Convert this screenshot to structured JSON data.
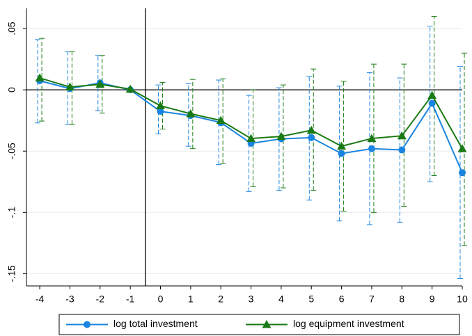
{
  "chart_data": {
    "type": "line",
    "x": [
      -4,
      -3,
      -2,
      -1,
      0,
      1,
      2,
      3,
      4,
      5,
      6,
      7,
      8,
      9,
      10
    ],
    "xlim": [
      -4.44,
      10
    ],
    "xticks": [
      -4,
      -3,
      -2,
      -1,
      0,
      1,
      2,
      3,
      4,
      5,
      6,
      7,
      8,
      9,
      10
    ],
    "ylim": [
      -0.16,
      0.0665
    ],
    "yticks": [
      {
        "value": -0.15,
        "label": "-.15"
      },
      {
        "value": -0.1,
        "label": "-.1"
      },
      {
        "value": -0.05,
        "label": "-.05"
      },
      0,
      {
        "value": 0.05,
        "label": ".05"
      }
    ],
    "grid": true,
    "hline": 0,
    "vline": -0.5,
    "legend": "bottom",
    "series": [
      {
        "name": "log total investment",
        "color": "#1a85e0",
        "marker": "circle",
        "values": [
          0.0074,
          0.001,
          0.0057,
          0,
          -0.0176,
          -0.021,
          -0.0267,
          -0.0437,
          -0.04,
          -0.039,
          -0.052,
          -0.048,
          -0.049,
          -0.011,
          -0.0676
        ],
        "lower": [
          -0.027,
          -0.028,
          -0.017,
          null,
          -0.036,
          -0.046,
          -0.061,
          -0.083,
          -0.082,
          -0.09,
          -0.107,
          -0.11,
          -0.108,
          -0.075,
          -0.154
        ],
        "upper": [
          0.041,
          0.031,
          0.028,
          null,
          0.004,
          0.005,
          0.008,
          -0.0045,
          0.0017,
          0.011,
          0.003,
          0.014,
          0.0097,
          0.052,
          0.019
        ]
      },
      {
        "name": "log equipment investment",
        "color": "#1a7a14",
        "marker": "triangle",
        "values": [
          0.0097,
          0.0023,
          0.0045,
          0.0006,
          -0.013,
          -0.0195,
          -0.025,
          -0.0397,
          -0.038,
          -0.033,
          -0.046,
          -0.0397,
          -0.0375,
          -0.0045,
          -0.048
        ],
        "lower": [
          -0.0255,
          -0.028,
          -0.019,
          null,
          -0.032,
          -0.048,
          -0.06,
          -0.079,
          -0.08,
          -0.082,
          -0.099,
          -0.1,
          -0.095,
          -0.07,
          -0.127
        ],
        "upper": [
          0.042,
          0.031,
          0.028,
          null,
          0.006,
          0.0085,
          0.009,
          0,
          0.004,
          0.017,
          0.007,
          0.021,
          0.021,
          0.06,
          0.03
        ]
      }
    ]
  }
}
